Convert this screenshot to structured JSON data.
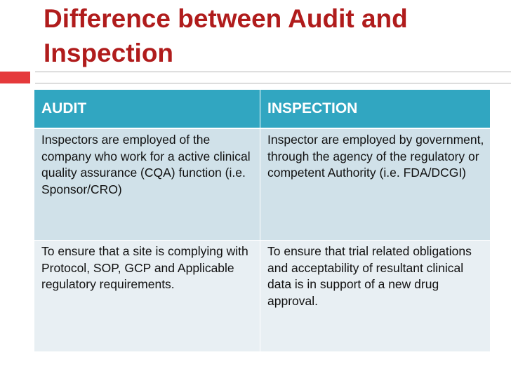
{
  "slide": {
    "title": "Difference between Audit and Inspection"
  },
  "table": {
    "headers": [
      "AUDIT",
      "INSPECTION"
    ],
    "rows": [
      [
        "Inspectors are employed of the company who work for a active clinical quality assurance (CQA) function (i.e. Sponsor/CRO)",
        "Inspector are employed by government, through the agency of the regulatory or competent Authority (i.e. FDA/DCGI)"
      ],
      [
        "To ensure that a site is complying with Protocol, SOP, GCP and Applicable regulatory requirements.",
        "To ensure that trial related obligations and acceptability of resultant clinical data is in support of a new drug approval."
      ]
    ]
  },
  "colors": {
    "title": "#b01c1c",
    "accent_bar": "#e5393b",
    "header_fill": "#31a6c1",
    "row1_fill": "#d0e1e9",
    "row2_fill": "#e8eff3"
  }
}
